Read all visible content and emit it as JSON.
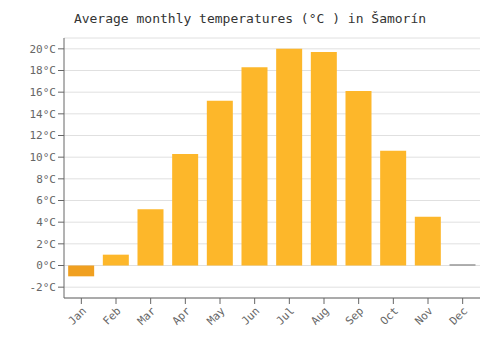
{
  "chart_data": {
    "type": "bar",
    "title": "Average monthly temperatures (°C ) in Šamorín",
    "categories": [
      "Jan",
      "Feb",
      "Mar",
      "Apr",
      "May",
      "Jun",
      "Jul",
      "Aug",
      "Sep",
      "Oct",
      "Nov",
      "Dec"
    ],
    "values": [
      -1.0,
      1.0,
      5.2,
      10.3,
      15.2,
      18.3,
      20.0,
      19.7,
      16.1,
      10.6,
      4.5,
      0.1
    ],
    "colors": [
      "#F0A020",
      "#FDB72A",
      "#FDB72A",
      "#FDB72A",
      "#FDB72A",
      "#FDB72A",
      "#FDB72A",
      "#FDB72A",
      "#FDB72A",
      "#FDB72A",
      "#FDB72A",
      "#777777"
    ],
    "ylim": [
      -3,
      21
    ],
    "yticks": [
      {
        "value": -2,
        "label": "-2°C"
      },
      {
        "value": 0,
        "label": "0°C"
      },
      {
        "value": 2,
        "label": "2°C"
      },
      {
        "value": 4,
        "label": "4°C"
      },
      {
        "value": 6,
        "label": "6°C"
      },
      {
        "value": 8,
        "label": "8°C"
      },
      {
        "value": 10,
        "label": "10°C"
      },
      {
        "value": 12,
        "label": "12°C"
      },
      {
        "value": 14,
        "label": "14°C"
      },
      {
        "value": 16,
        "label": "16°C"
      },
      {
        "value": 18,
        "label": "18°C"
      },
      {
        "value": 20,
        "label": "20°C"
      }
    ],
    "grid": true
  }
}
